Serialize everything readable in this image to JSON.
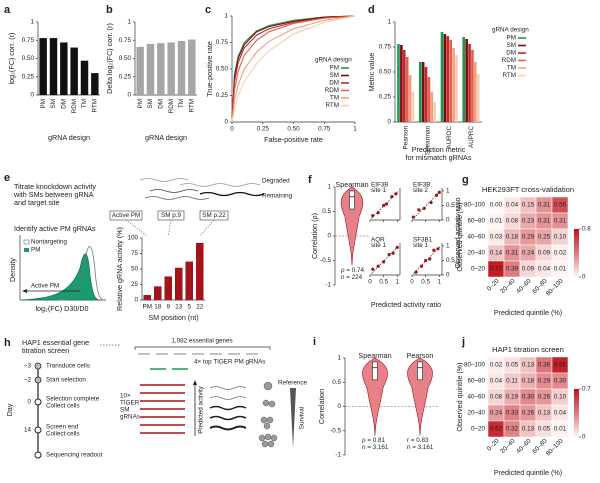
{
  "chart_data": [
    {
      "label": "a",
      "type": "bar",
      "categories": [
        "PM",
        "SM",
        "DM",
        "RDM",
        "TM",
        "RTM"
      ],
      "values": [
        0.78,
        0.78,
        0.72,
        0.65,
        0.47,
        0.3
      ],
      "color": "#111111",
      "ylabel": "log₂(FC) corr. (r)",
      "xlabel": "gRNA design",
      "ylim": [
        0,
        1
      ],
      "yticks": [
        0,
        0.25,
        {
          "value": 0.5,
          "label": "0.50"
        },
        0.75,
        1
      ]
    },
    {
      "label": "b",
      "type": "bar",
      "categories": [
        "PM",
        "SM",
        "DM",
        "RDM",
        "TM",
        "RTM"
      ],
      "values": [
        0.66,
        0.7,
        0.71,
        0.72,
        0.74,
        0.76
      ],
      "color": "#a6a6a6",
      "ylabel": "Delta log₂(FC) corr. (r)",
      "xlabel": "gRNA design",
      "ylim": [
        0,
        1
      ],
      "yticks": [
        0,
        0.25,
        {
          "value": 0.5,
          "label": "0.50"
        },
        0.75,
        1
      ]
    },
    {
      "label": "c",
      "type": "line",
      "x": [
        0,
        0.02,
        0.05,
        0.1,
        0.2,
        0.3,
        0.5,
        0.75,
        1
      ],
      "series": [
        {
          "name": "PM",
          "color": "#1a9a50",
          "values": [
            0,
            0.45,
            0.62,
            0.75,
            0.86,
            0.91,
            0.96,
            0.99,
            1
          ]
        },
        {
          "name": "SM",
          "color": "#7a0c10",
          "values": [
            0,
            0.42,
            0.6,
            0.73,
            0.85,
            0.9,
            0.95,
            0.99,
            1
          ]
        },
        {
          "name": "DM",
          "color": "#c0282c",
          "values": [
            0,
            0.38,
            0.56,
            0.7,
            0.82,
            0.88,
            0.94,
            0.98,
            1
          ]
        },
        {
          "name": "RDM",
          "color": "#e3604a",
          "values": [
            0,
            0.3,
            0.48,
            0.63,
            0.77,
            0.85,
            0.93,
            0.98,
            1
          ]
        },
        {
          "name": "TM",
          "color": "#f0a080",
          "values": [
            0,
            0.2,
            0.35,
            0.5,
            0.66,
            0.76,
            0.88,
            0.96,
            1
          ]
        },
        {
          "name": "RTM",
          "color": "#f7cdb5",
          "values": [
            0,
            0.12,
            0.25,
            0.38,
            0.55,
            0.67,
            0.83,
            0.94,
            1
          ]
        }
      ],
      "legend_title": "gRNA design",
      "legend": "lower right",
      "xlabel": "False-positive rate",
      "ylabel": "True-positive rate",
      "xlim": [
        0,
        1
      ],
      "xticks": [
        0,
        0.25,
        {
          "value": 0.5,
          "label": "0.50"
        },
        0.75,
        1
      ],
      "ylim": [
        0,
        1
      ],
      "yticks": [
        0,
        0.25,
        {
          "value": 0.5,
          "label": "0.50"
        },
        0.75,
        1
      ]
    },
    {
      "label": "d",
      "type": "grouped_bar",
      "categories": [
        "Pearson",
        "Spearman",
        "AUROC",
        "AUPRC"
      ],
      "series": [
        {
          "name": "PM",
          "color": "#1a9a50",
          "values": [
            0.78,
            0.6,
            0.9,
            0.85
          ]
        },
        {
          "name": "SM",
          "color": "#7a0c10",
          "values": [
            0.77,
            0.6,
            0.88,
            0.83
          ]
        },
        {
          "name": "DM",
          "color": "#c0282c",
          "values": [
            0.72,
            0.55,
            0.86,
            0.78
          ]
        },
        {
          "name": "RDM",
          "color": "#e3604a",
          "values": [
            0.65,
            0.45,
            0.82,
            0.72
          ]
        },
        {
          "name": "TM",
          "color": "#f0a080",
          "values": [
            0.47,
            0.3,
            0.74,
            0.6
          ]
        },
        {
          "name": "RTM",
          "color": "#f7cdb5",
          "values": [
            0.3,
            0.2,
            0.67,
            0.48
          ]
        }
      ],
      "legend_title": "gRNA design",
      "legend": "right",
      "ylabel": "Metric value",
      "xlabel": [
        "Prediction metric",
        "for mismatch gRNAs"
      ],
      "ylim": [
        0,
        1
      ],
      "yticks": [
        0,
        0.25,
        {
          "value": 0.5,
          "label": "0.50"
        },
        0.75,
        1
      ]
    },
    {
      "type": "bar",
      "categories": [
        "PM",
        "18",
        "9",
        "13",
        "5",
        "22"
      ],
      "values": [
        8,
        22,
        38,
        52,
        62,
        92
      ],
      "color": "#a3141c",
      "ylabel": "Relative gRNA activity (%)",
      "xlabel": "SM position (nt)",
      "ylim": [
        0,
        100
      ],
      "yticks": [
        0,
        25,
        50,
        75,
        100
      ]
    },
    {
      "label": "f",
      "type": "violin",
      "panels": [
        {
          "title": "Spearman",
          "annotations": [
            "ρ = 0.74",
            "n = 224"
          ]
        }
      ],
      "color": "#e8808a",
      "ylabel": "Correlation (ρ)",
      "ylim": [
        -1,
        1
      ],
      "yticks": [
        -1,
        -0.5,
        0,
        0.5,
        1
      ]
    },
    {
      "type": "scatter",
      "panels": [
        {
          "title": [
            "EIF3B",
            "site 1"
          ],
          "x": [
            0.1,
            0.3,
            0.5,
            0.6,
            0.8,
            0.95
          ],
          "y": [
            0.15,
            0.25,
            0.5,
            0.55,
            0.8,
            0.9
          ]
        },
        {
          "title": [
            "EIF3B",
            "site 2"
          ],
          "x": [
            0.05,
            0.25,
            0.45,
            0.7,
            0.9,
            1.0
          ],
          "y": [
            0.1,
            0.35,
            0.4,
            0.6,
            0.85,
            0.95
          ]
        },
        {
          "title": [
            "AQR",
            "site 1"
          ],
          "x": [
            0.1,
            0.3,
            0.5,
            0.7,
            0.85,
            1.0
          ],
          "y": [
            0.2,
            0.3,
            0.45,
            0.7,
            0.75,
            0.95
          ]
        },
        {
          "title": [
            "SF3B1",
            "site 1"
          ],
          "x": [
            0.15,
            0.35,
            0.5,
            0.65,
            0.8,
            0.95
          ],
          "y": [
            0.1,
            0.3,
            0.5,
            0.55,
            0.85,
            0.9
          ]
        }
      ],
      "color": "#a3141c",
      "xlabel": "Predicted activity ratio",
      "ylabel": "Observed activity ratio",
      "xlim": [
        0,
        1.1
      ],
      "xticks": [
        0,
        0.5,
        1
      ],
      "ylim": [
        0,
        1.1
      ],
      "yticks": [
        0,
        0.5,
        1
      ]
    },
    {
      "label": "g",
      "type": "heatmap",
      "title": "HEK293FT cross-validation",
      "row_labels": [
        "80–100",
        "60–80",
        "40–60",
        "20–40",
        "0–20"
      ],
      "col_labels": [
        "0–20",
        "20–40",
        "40–60",
        "60–80",
        "80–100"
      ],
      "values": [
        [
          0,
          0.04,
          0.15,
          0.31,
          0.56
        ],
        [
          0.01,
          0.08,
          0.23,
          0.31,
          0.31
        ],
        [
          0.03,
          0.18,
          0.29,
          0.25,
          0.1
        ],
        [
          0.14,
          0.31,
          0.24,
          0.09,
          0.02
        ],
        [
          0.77,
          0.39,
          0.09,
          0.04,
          0.01
        ]
      ],
      "value_labels": [
        [
          "0.00",
          "0.04",
          "0.15",
          "0.31",
          "0.56"
        ],
        [
          "0.01",
          "0.08",
          "0.23",
          "0.31",
          "0.31"
        ],
        [
          "0.03",
          "0.18",
          "0.29",
          "0.25",
          "0.10"
        ],
        [
          "0.14",
          "0.31",
          "0.24",
          "0.09",
          "0.02"
        ],
        [
          "0.77",
          "0.39",
          "0.09",
          "0.04",
          "0.01"
        ]
      ],
      "xlabel": "Predicted quintile (%)",
      "ylabel": "Observed quintile (%)",
      "clim": [
        0,
        0.8
      ],
      "cticks": [
        0,
        0.8
      ]
    },
    {
      "label": "i",
      "type": "violin",
      "panels": [
        {
          "title": "Spearman",
          "annotations": [
            "ρ = 0.81",
            "n = 3,161"
          ]
        },
        {
          "title": "Pearson",
          "annotations": [
            "r = 0.83",
            "n = 3,161"
          ]
        }
      ],
      "color": "#e8808a",
      "ylabel": "Correlation",
      "ylim": [
        -1,
        1
      ],
      "yticks": [
        -1,
        -0.5,
        0,
        0.5,
        1
      ]
    },
    {
      "label": "j",
      "type": "heatmap",
      "title": "HAP1 titration screen",
      "row_labels": [
        "80–100",
        "60–80",
        "40–60",
        "20–40",
        "0–20"
      ],
      "col_labels": [
        "0–20",
        "20–40",
        "40–60",
        "60–80",
        "80–100"
      ],
      "values": [
        [
          0.02,
          0.05,
          0.13,
          0.36,
          0.65
        ],
        [
          0.04,
          0.11,
          0.18,
          0.29,
          0.3
        ],
        [
          0.08,
          0.19,
          0.3,
          0.26,
          0.1
        ],
        [
          0.24,
          0.33,
          0.26,
          0.13,
          0.04
        ],
        [
          0.62,
          0.32,
          0.13,
          0.05,
          0.01
        ]
      ],
      "value_labels": [
        [
          "0.02",
          "0.05",
          "0.13",
          "0.36",
          "0.65"
        ],
        [
          "0.04",
          "0.11",
          "0.18",
          "0.29",
          "0.30"
        ],
        [
          "0.08",
          "0.19",
          "0.30",
          "0.26",
          "0.10"
        ],
        [
          "0.24",
          "0.33",
          "0.26",
          "0.13",
          "0.04"
        ],
        [
          "0.62",
          "0.32",
          "0.13",
          "0.05",
          "0.01"
        ]
      ],
      "xlabel": "Predicted quintile (%)",
      "ylabel": "Observed quintile (%)",
      "clim": [
        0,
        0.7
      ],
      "cticks": [
        0,
        0.7
      ]
    }
  ],
  "diagram_e": {
    "label": "e",
    "step1": [
      "Titrate knockdown activity",
      "with SMs between gRNA",
      "and target site"
    ],
    "degraded": "Degraded",
    "remaining": "Remaining",
    "step2": "Identify active PM gRNAs",
    "legend": [
      "Nontargeting",
      "PM"
    ],
    "ylabel": "Density",
    "arrow_label": "Active PM",
    "xlabel": "log₂(FC) D30/D0",
    "callouts": [
      "Active PM",
      "SM p.9",
      "SM p.22"
    ]
  },
  "diagram_h": {
    "label": "h",
    "title": [
      "HAP1 essential gene",
      "titration screen"
    ],
    "day_label": "Day",
    "days": [
      "−3",
      "−2",
      "0",
      "14"
    ],
    "events": [
      [
        "Transduce cells"
      ],
      [
        "Start selection"
      ],
      [
        "Selection complete",
        "Collect cells"
      ],
      [
        "Screen end",
        "Collect cells"
      ],
      [
        "Sequencing readout"
      ]
    ],
    "genes": "1,082 essential genes",
    "pm": "4× top TIGER PM gRNAs",
    "sm": [
      "10×",
      "TIGER",
      "SM",
      "gRNAs"
    ],
    "predicted": "Predicted activity",
    "reference": "Reference",
    "survival": "Survival"
  }
}
